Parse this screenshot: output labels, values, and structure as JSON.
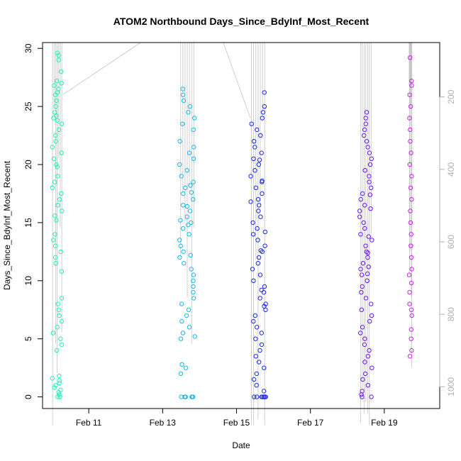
{
  "chart_data": {
    "type": "scatter",
    "title": "ATOM2 Northbound Days_Since_BdyInf_Most_Recent",
    "xlabel": "Date",
    "ylabel": "Days_Since_BdyInf_Most_Recent",
    "x_axis": {
      "type": "date",
      "range": [
        "2022-02-09T18:00",
        "2022-02-20T12:00"
      ],
      "ticks": [
        {
          "date": "2022-02-11",
          "label": "Feb 11"
        },
        {
          "date": "2022-02-13",
          "label": "Feb 13"
        },
        {
          "date": "2022-02-15",
          "label": "Feb 15"
        },
        {
          "date": "2022-02-17",
          "label": "Feb 17"
        },
        {
          "date": "2022-02-19",
          "label": "Feb 19"
        }
      ]
    },
    "y_left": {
      "range": [
        -1,
        30.5
      ],
      "ticks": [
        0,
        5,
        10,
        15,
        20,
        25,
        30
      ]
    },
    "y_right": {
      "range": [
        50,
        1060
      ],
      "reversed": true,
      "ticks": [
        200,
        400,
        600,
        800,
        1000
      ],
      "color": "#b0b0b0"
    },
    "grid": false,
    "legend": "none",
    "track_color": "#c4c4c4",
    "groups": [
      {
        "start": "2022-02-10T00:00",
        "end": "2022-02-10T07:00",
        "color": "#22f0b4",
        "values": [
          0.0,
          0.0,
          0.0,
          0.2,
          0.4,
          0.6,
          0.8,
          1.0,
          1.2,
          1.4,
          1.6,
          1.8,
          4.0,
          4.5,
          5.0,
          5.5,
          6.0,
          6.5,
          7.0,
          7.5,
          8.0,
          8.5,
          10.8,
          11.5,
          12.0,
          12.5,
          13.0,
          13.5,
          14.0,
          15.2,
          15.6,
          16.0,
          16.5,
          17.0,
          17.5,
          18.0,
          18.5,
          19.0,
          19.8,
          20.0,
          20.5,
          21.0,
          21.5,
          22.0,
          22.5,
          23.0,
          23.5,
          23.8,
          24.0,
          24.2,
          24.5,
          25.0,
          25.5,
          26.0,
          26.2,
          26.5,
          26.8,
          27.0,
          27.2,
          28.0,
          29.0,
          29.4,
          29.6
        ]
      },
      {
        "start": "2022-02-13T11:00",
        "end": "2022-02-13T21:00",
        "color": "#19b8e8",
        "values": [
          0.0,
          0.0,
          0.0,
          0.0,
          0.0,
          0.0,
          0.0,
          2.0,
          2.5,
          2.8,
          5.0,
          5.2,
          5.5,
          6.0,
          6.5,
          7.0,
          7.5,
          8.0,
          8.5,
          9.0,
          9.5,
          10.0,
          10.5,
          11.0,
          11.5,
          12.0,
          12.5,
          13.0,
          13.5,
          14.0,
          14.5,
          15.0,
          15.5,
          16.0,
          16.5,
          17.0,
          17.5,
          18.0,
          18.5,
          19.0,
          19.5,
          20.0,
          20.5,
          21.0,
          21.5,
          22.0,
          23.0,
          23.5,
          24.0,
          24.5,
          25.0,
          25.5,
          26.0,
          26.5,
          14.8,
          15.2,
          17.6,
          18.2,
          12.2,
          16.4
        ]
      },
      {
        "start": "2022-02-15T09:00",
        "end": "2022-02-15T19:00",
        "color": "#1a2ae8",
        "values": [
          0.0,
          0.0,
          0.0,
          0.0,
          0.0,
          0.0,
          0.0,
          0.0,
          0.5,
          1.0,
          1.5,
          2.0,
          2.5,
          3.0,
          3.5,
          4.0,
          4.5,
          5.0,
          5.5,
          6.0,
          6.5,
          7.0,
          7.5,
          8.0,
          8.5,
          9.0,
          9.5,
          10.0,
          10.5,
          11.0,
          11.5,
          12.0,
          12.5,
          13.0,
          13.5,
          14.0,
          14.5,
          15.0,
          15.5,
          16.0,
          16.5,
          17.0,
          17.5,
          18.0,
          18.5,
          19.0,
          19.5,
          20.0,
          20.5,
          21.0,
          21.5,
          22.0,
          22.5,
          23.0,
          23.5,
          24.0,
          24.5,
          25.0,
          26.2,
          12.6,
          14.2,
          16.8,
          18.6,
          20.4,
          9.2,
          7.8
        ]
      },
      {
        "start": "2022-02-18T08:00",
        "end": "2022-02-18T16:00",
        "color": "#6a18f0",
        "values": [
          0.0,
          0.0,
          0.2,
          0.5,
          1.0,
          1.5,
          2.0,
          2.5,
          3.0,
          3.5,
          4.0,
          4.5,
          5.0,
          5.5,
          6.0,
          6.5,
          7.0,
          7.5,
          8.0,
          8.5,
          9.0,
          9.5,
          10.0,
          10.5,
          11.0,
          11.5,
          12.0,
          12.5,
          13.0,
          13.5,
          14.0,
          14.5,
          15.0,
          15.5,
          16.0,
          16.5,
          17.0,
          17.5,
          18.0,
          18.5,
          19.0,
          19.5,
          20.0,
          20.5,
          21.0,
          21.5,
          22.0,
          22.5,
          23.0,
          23.5,
          24.0,
          24.5,
          11.2,
          12.4,
          10.6,
          13.8,
          16.2,
          17.4
        ]
      },
      {
        "start": "2022-02-19T16:00",
        "end": "2022-02-19T18:00",
        "color": "#cc22e8",
        "values": [
          3.5,
          4.0,
          5.0,
          5.8,
          7.0,
          7.5,
          8.0,
          9.0,
          9.8,
          10.5,
          11.0,
          12.0,
          13.0,
          14.0,
          15.0,
          16.0,
          17.0,
          18.0,
          19.0,
          20.0,
          21.0,
          22.0,
          23.0,
          24.0,
          25.0,
          26.0,
          26.8,
          27.2,
          29.2
        ]
      }
    ]
  }
}
